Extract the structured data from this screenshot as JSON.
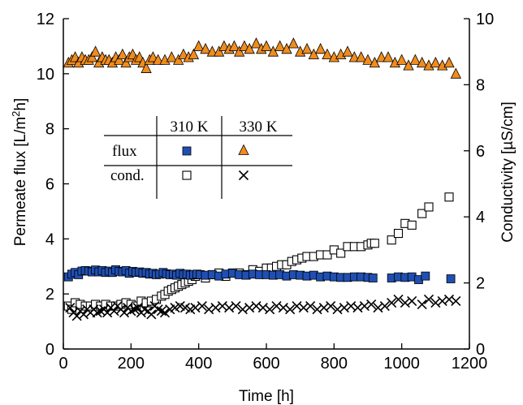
{
  "chart_data": {
    "type": "scatter",
    "x_label": "Time [h]",
    "y_label_left": "Permeate flux [L/m²h]",
    "y_label_left_parts": [
      "Permeate flux [L/m",
      "2",
      "h]"
    ],
    "y_label_right": "Conductivity [µS/cm]",
    "xlim": [
      0,
      1200
    ],
    "ylim_left": [
      0,
      12
    ],
    "ylim_right": [
      0,
      10
    ],
    "x_ticks": [
      0,
      200,
      400,
      600,
      800,
      1000,
      1200
    ],
    "y_ticks_left": [
      0,
      2,
      4,
      6,
      8,
      10,
      12
    ],
    "y_ticks_right": [
      0,
      2,
      4,
      6,
      8,
      10
    ],
    "legend": {
      "col_headers": [
        "310 K",
        "330 K"
      ],
      "row_headers": [
        "flux",
        "cond."
      ]
    },
    "colors": {
      "flux_310K": "#1f4fb3",
      "flux_330K": "#f08c1e",
      "marker_edge": "#000000"
    },
    "series": [
      {
        "name": "flux 310 K",
        "axis": "left",
        "marker": "filled-square",
        "x": [
          15,
          25,
          35,
          45,
          55,
          65,
          75,
          85,
          95,
          105,
          115,
          125,
          135,
          145,
          155,
          165,
          175,
          185,
          195,
          205,
          215,
          225,
          235,
          245,
          255,
          265,
          275,
          285,
          295,
          305,
          315,
          325,
          335,
          345,
          355,
          365,
          375,
          385,
          395,
          405,
          420,
          440,
          460,
          480,
          500,
          520,
          540,
          560,
          580,
          600,
          620,
          640,
          660,
          680,
          700,
          720,
          740,
          760,
          780,
          800,
          820,
          840,
          860,
          880,
          900,
          915,
          970,
          990,
          1010,
          1030,
          1050,
          1070,
          1145
        ],
        "y": [
          2.62,
          2.72,
          2.78,
          2.7,
          2.83,
          2.85,
          2.83,
          2.8,
          2.87,
          2.8,
          2.85,
          2.78,
          2.83,
          2.78,
          2.88,
          2.82,
          2.8,
          2.85,
          2.75,
          2.82,
          2.78,
          2.8,
          2.75,
          2.78,
          2.72,
          2.75,
          2.7,
          2.72,
          2.78,
          2.73,
          2.7,
          2.72,
          2.68,
          2.75,
          2.7,
          2.72,
          2.68,
          2.7,
          2.72,
          2.7,
          2.68,
          2.7,
          2.65,
          2.72,
          2.75,
          2.7,
          2.68,
          2.72,
          2.7,
          2.7,
          2.68,
          2.7,
          2.65,
          2.7,
          2.68,
          2.65,
          2.68,
          2.62,
          2.65,
          2.62,
          2.6,
          2.6,
          2.62,
          2.62,
          2.6,
          2.58,
          2.58,
          2.62,
          2.6,
          2.62,
          2.52,
          2.65,
          2.55
        ]
      },
      {
        "name": "flux 330 K",
        "axis": "left",
        "marker": "filled-triangle",
        "x": [
          15,
          25,
          35,
          45,
          55,
          65,
          75,
          85,
          95,
          105,
          115,
          125,
          135,
          145,
          155,
          165,
          175,
          185,
          195,
          205,
          215,
          225,
          235,
          245,
          255,
          265,
          280,
          300,
          320,
          340,
          355,
          370,
          385,
          400,
          420,
          440,
          460,
          475,
          490,
          505,
          520,
          535,
          550,
          570,
          585,
          600,
          620,
          640,
          660,
          680,
          700,
          720,
          740,
          760,
          780,
          800,
          820,
          840,
          860,
          880,
          900,
          920,
          940,
          960,
          980,
          1000,
          1020,
          1040,
          1060,
          1080,
          1100,
          1120,
          1140,
          1160
        ],
        "y": [
          10.4,
          10.5,
          10.6,
          10.4,
          10.6,
          10.5,
          10.5,
          10.6,
          10.8,
          10.4,
          10.6,
          10.5,
          10.5,
          10.4,
          10.6,
          10.5,
          10.7,
          10.4,
          10.6,
          10.7,
          10.5,
          10.6,
          10.4,
          10.2,
          10.5,
          10.6,
          10.5,
          10.5,
          10.6,
          10.5,
          10.7,
          10.6,
          10.7,
          11.0,
          10.9,
          10.8,
          10.8,
          11.0,
          10.9,
          11.0,
          10.8,
          11.0,
          10.9,
          11.1,
          10.9,
          11.0,
          10.8,
          11.0,
          10.9,
          11.1,
          10.8,
          10.9,
          10.7,
          10.9,
          10.7,
          10.6,
          10.7,
          10.8,
          10.6,
          10.6,
          10.5,
          10.4,
          10.6,
          10.6,
          10.4,
          10.5,
          10.3,
          10.5,
          10.4,
          10.3,
          10.4,
          10.3,
          10.4,
          10.0
        ]
      },
      {
        "name": "cond. 310 K",
        "axis": "right",
        "marker": "open-square",
        "x": [
          15,
          25,
          35,
          50,
          65,
          80,
          95,
          110,
          125,
          140,
          155,
          170,
          185,
          200,
          215,
          230,
          245,
          260,
          275,
          290,
          300,
          310,
          320,
          330,
          340,
          350,
          360,
          370,
          380,
          390,
          400,
          420,
          440,
          460,
          480,
          500,
          520,
          540,
          560,
          580,
          600,
          615,
          630,
          645,
          660,
          675,
          690,
          705,
          720,
          740,
          760,
          780,
          800,
          820,
          840,
          860,
          880,
          900,
          910,
          920,
          970,
          990,
          1010,
          1030,
          1060,
          1080,
          1140
        ],
        "y": [
          1.3,
          1.2,
          1.4,
          1.35,
          1.3,
          1.3,
          1.35,
          1.3,
          1.35,
          1.3,
          1.3,
          1.35,
          1.4,
          1.35,
          1.3,
          1.45,
          1.4,
          1.45,
          1.5,
          1.6,
          1.65,
          1.75,
          1.8,
          1.85,
          1.9,
          1.95,
          2.0,
          2.05,
          2.1,
          2.2,
          2.25,
          2.15,
          2.25,
          2.3,
          2.2,
          2.3,
          2.3,
          2.25,
          2.4,
          2.35,
          2.45,
          2.45,
          2.5,
          2.55,
          2.55,
          2.65,
          2.7,
          2.75,
          2.8,
          2.8,
          2.85,
          2.85,
          3.0,
          2.9,
          3.1,
          3.1,
          3.1,
          3.15,
          3.2,
          3.2,
          3.3,
          3.5,
          3.8,
          3.75,
          4.1,
          4.3,
          4.6
        ]
      },
      {
        "name": "cond. 330 K",
        "axis": "right",
        "marker": "x",
        "x": [
          20,
          30,
          40,
          50,
          60,
          70,
          80,
          90,
          100,
          110,
          120,
          130,
          140,
          150,
          160,
          170,
          180,
          190,
          200,
          210,
          220,
          230,
          240,
          250,
          260,
          270,
          280,
          290,
          300,
          315,
          330,
          345,
          360,
          375,
          390,
          410,
          430,
          450,
          470,
          490,
          510,
          530,
          550,
          570,
          590,
          610,
          630,
          650,
          670,
          690,
          710,
          730,
          750,
          770,
          790,
          810,
          830,
          850,
          870,
          890,
          910,
          930,
          950,
          970,
          990,
          1010,
          1030,
          1060,
          1080,
          1100,
          1120,
          1140,
          1160
        ],
        "y": [
          1.25,
          1.1,
          1.0,
          1.15,
          1.05,
          1.2,
          1.1,
          1.2,
          1.1,
          1.15,
          1.2,
          1.1,
          1.25,
          1.15,
          1.3,
          1.2,
          1.1,
          1.25,
          1.15,
          1.2,
          1.25,
          1.1,
          1.2,
          1.15,
          1.05,
          1.3,
          1.2,
          1.15,
          1.1,
          1.2,
          1.25,
          1.3,
          1.25,
          1.2,
          1.25,
          1.3,
          1.2,
          1.25,
          1.3,
          1.25,
          1.3,
          1.2,
          1.25,
          1.3,
          1.25,
          1.2,
          1.3,
          1.25,
          1.2,
          1.3,
          1.25,
          1.3,
          1.2,
          1.25,
          1.3,
          1.2,
          1.25,
          1.3,
          1.25,
          1.3,
          1.35,
          1.25,
          1.3,
          1.4,
          1.5,
          1.4,
          1.45,
          1.35,
          1.5,
          1.4,
          1.45,
          1.5,
          1.45
        ]
      }
    ]
  }
}
